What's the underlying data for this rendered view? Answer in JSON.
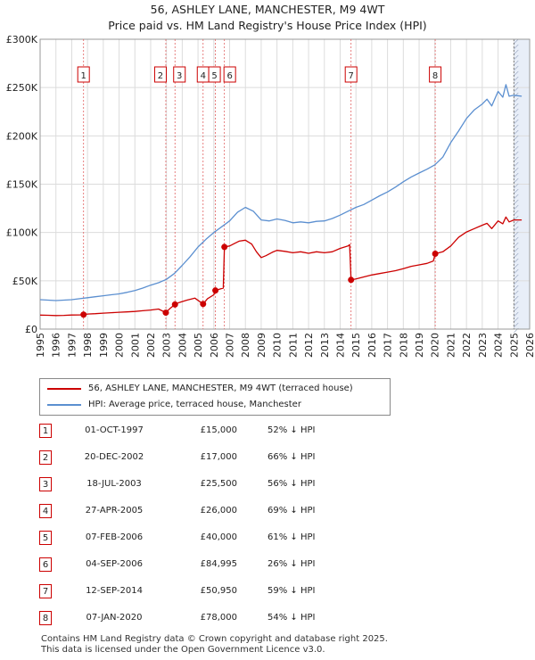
{
  "title_line1": "56, ASHLEY LANE, MANCHESTER, M9 4WT",
  "title_line2": "Price paid vs. HM Land Registry's House Price Index (HPI)",
  "colors": {
    "price": "#cc0000",
    "hpi": "#5b8fd0",
    "grid": "#dcdcdc",
    "marker_border": "#cc0000",
    "shade": "#e8eef8"
  },
  "chart_data": {
    "type": "line",
    "title": "Price paid vs. HM Land Registry's House Price Index (HPI)",
    "xlim": [
      1995,
      2026
    ],
    "ylim": [
      0,
      300000
    ],
    "x_ticks": [
      "1995",
      "1996",
      "1997",
      "1998",
      "1999",
      "2000",
      "2001",
      "2002",
      "2003",
      "2004",
      "2005",
      "2006",
      "2007",
      "2008",
      "2009",
      "2010",
      "2011",
      "2012",
      "2013",
      "2014",
      "2015",
      "2016",
      "2017",
      "2018",
      "2019",
      "2020",
      "2021",
      "2022",
      "2023",
      "2024",
      "2025",
      "2026"
    ],
    "y_ticks": [
      {
        "value": 0,
        "label": "£0"
      },
      {
        "value": 50000,
        "label": "£50K"
      },
      {
        "value": 100000,
        "label": "£100K"
      },
      {
        "value": 150000,
        "label": "£150K"
      },
      {
        "value": 200000,
        "label": "£200K"
      },
      {
        "value": 250000,
        "label": "£250K"
      },
      {
        "value": 300000,
        "label": "£300K"
      }
    ],
    "forecast_from": 2025.0,
    "series": [
      {
        "name": "56, ASHLEY LANE, MANCHESTER, M9 4WT (terraced house)",
        "color": "#cc0000",
        "points": [
          [
            1995.0,
            14500
          ],
          [
            1995.5,
            14300
          ],
          [
            1996.0,
            14000
          ],
          [
            1996.5,
            14200
          ],
          [
            1997.0,
            14600
          ],
          [
            1997.5,
            14700
          ],
          [
            1997.75,
            15000
          ],
          [
            1998.0,
            15600
          ],
          [
            1998.5,
            16000
          ],
          [
            1999.0,
            16500
          ],
          [
            1999.5,
            17000
          ],
          [
            2000.0,
            17400
          ],
          [
            2000.5,
            17800
          ],
          [
            2001.0,
            18300
          ],
          [
            2001.5,
            19000
          ],
          [
            2002.0,
            19800
          ],
          [
            2002.5,
            20800
          ],
          [
            2002.96,
            17000
          ],
          [
            2003.2,
            21000
          ],
          [
            2003.54,
            25500
          ],
          [
            2003.8,
            27500
          ],
          [
            2004.3,
            30000
          ],
          [
            2004.8,
            32000
          ],
          [
            2005.32,
            26000
          ],
          [
            2005.6,
            31500
          ],
          [
            2006.0,
            35500
          ],
          [
            2006.1,
            40000
          ],
          [
            2006.4,
            41500
          ],
          [
            2006.6,
            42500
          ],
          [
            2006.67,
            84995
          ],
          [
            2007.0,
            86000
          ],
          [
            2007.3,
            88500
          ],
          [
            2007.6,
            91000
          ],
          [
            2008.0,
            92000
          ],
          [
            2008.4,
            88000
          ],
          [
            2008.7,
            80000
          ],
          [
            2009.0,
            74000
          ],
          [
            2009.3,
            76000
          ],
          [
            2009.7,
            79500
          ],
          [
            2010.0,
            81500
          ],
          [
            2010.5,
            80500
          ],
          [
            2011.0,
            79000
          ],
          [
            2011.5,
            80000
          ],
          [
            2012.0,
            78500
          ],
          [
            2012.5,
            80000
          ],
          [
            2013.0,
            79000
          ],
          [
            2013.5,
            80000
          ],
          [
            2014.0,
            83500
          ],
          [
            2014.5,
            86000
          ],
          [
            2014.6,
            87500
          ],
          [
            2014.69,
            50950
          ],
          [
            2015.0,
            52000
          ],
          [
            2015.5,
            54000
          ],
          [
            2016.0,
            56000
          ],
          [
            2016.5,
            57500
          ],
          [
            2017.0,
            59000
          ],
          [
            2017.5,
            60500
          ],
          [
            2018.0,
            62500
          ],
          [
            2018.5,
            65000
          ],
          [
            2019.0,
            66500
          ],
          [
            2019.5,
            68000
          ],
          [
            2019.9,
            70500
          ],
          [
            2020.02,
            78000
          ],
          [
            2020.5,
            80000
          ],
          [
            2021.0,
            86000
          ],
          [
            2021.5,
            95000
          ],
          [
            2022.0,
            100500
          ],
          [
            2022.5,
            104000
          ],
          [
            2023.0,
            107500
          ],
          [
            2023.3,
            109500
          ],
          [
            2023.6,
            104000
          ],
          [
            2024.0,
            112000
          ],
          [
            2024.3,
            109000
          ],
          [
            2024.5,
            116000
          ],
          [
            2024.7,
            111000
          ],
          [
            2025.0,
            113000
          ],
          [
            2025.5,
            113000
          ]
        ]
      },
      {
        "name": "HPI: Average price, terraced house, Manchester",
        "color": "#5b8fd0",
        "points": [
          [
            1995.0,
            30500
          ],
          [
            1995.5,
            30000
          ],
          [
            1996.0,
            29500
          ],
          [
            1996.5,
            30000
          ],
          [
            1997.0,
            30500
          ],
          [
            1997.5,
            31500
          ],
          [
            1998.0,
            32500
          ],
          [
            1998.5,
            33500
          ],
          [
            1999.0,
            34500
          ],
          [
            1999.5,
            35500
          ],
          [
            2000.0,
            36500
          ],
          [
            2000.5,
            38000
          ],
          [
            2001.0,
            40000
          ],
          [
            2001.5,
            42500
          ],
          [
            2002.0,
            45500
          ],
          [
            2002.5,
            48000
          ],
          [
            2003.0,
            51500
          ],
          [
            2003.5,
            57500
          ],
          [
            2004.0,
            66000
          ],
          [
            2004.5,
            75000
          ],
          [
            2005.0,
            85000
          ],
          [
            2005.5,
            93000
          ],
          [
            2006.0,
            100000
          ],
          [
            2006.5,
            106000
          ],
          [
            2007.0,
            112000
          ],
          [
            2007.5,
            121000
          ],
          [
            2008.0,
            126000
          ],
          [
            2008.5,
            122000
          ],
          [
            2009.0,
            113000
          ],
          [
            2009.5,
            112000
          ],
          [
            2010.0,
            114000
          ],
          [
            2010.5,
            112500
          ],
          [
            2011.0,
            110000
          ],
          [
            2011.5,
            111000
          ],
          [
            2012.0,
            110000
          ],
          [
            2012.5,
            111500
          ],
          [
            2013.0,
            112000
          ],
          [
            2013.5,
            114500
          ],
          [
            2014.0,
            118000
          ],
          [
            2014.5,
            122000
          ],
          [
            2015.0,
            126000
          ],
          [
            2015.5,
            129000
          ],
          [
            2016.0,
            133500
          ],
          [
            2016.5,
            138000
          ],
          [
            2017.0,
            142000
          ],
          [
            2017.5,
            147000
          ],
          [
            2018.0,
            152500
          ],
          [
            2018.5,
            157500
          ],
          [
            2019.0,
            161500
          ],
          [
            2019.5,
            165500
          ],
          [
            2020.0,
            170000
          ],
          [
            2020.5,
            178000
          ],
          [
            2021.0,
            193000
          ],
          [
            2021.5,
            205000
          ],
          [
            2022.0,
            218000
          ],
          [
            2022.5,
            227000
          ],
          [
            2023.0,
            233000
          ],
          [
            2023.3,
            238000
          ],
          [
            2023.6,
            231000
          ],
          [
            2024.0,
            246000
          ],
          [
            2024.3,
            240000
          ],
          [
            2024.5,
            253000
          ],
          [
            2024.7,
            241000
          ],
          [
            2025.0,
            242000
          ],
          [
            2025.5,
            241000
          ]
        ]
      }
    ],
    "sales": [
      {
        "id": "1",
        "x": 1997.75,
        "price": 15000
      },
      {
        "id": "2",
        "x": 2002.96,
        "price": 17000
      },
      {
        "id": "3",
        "x": 2003.54,
        "price": 25500
      },
      {
        "id": "4",
        "x": 2005.32,
        "price": 26000
      },
      {
        "id": "5",
        "x": 2006.1,
        "price": 40000
      },
      {
        "id": "6",
        "x": 2006.67,
        "price": 84995
      },
      {
        "id": "7",
        "x": 2014.69,
        "price": 50950
      },
      {
        "id": "8",
        "x": 2020.02,
        "price": 78000
      }
    ]
  },
  "legend": {
    "price_label": "56, ASHLEY LANE, MANCHESTER, M9 4WT (terraced house)",
    "hpi_label": "HPI: Average price, terraced house, Manchester"
  },
  "transactions": [
    {
      "id": "1",
      "date": "01-OCT-1997",
      "price": "£15,000",
      "hpi": "52% ↓ HPI"
    },
    {
      "id": "2",
      "date": "20-DEC-2002",
      "price": "£17,000",
      "hpi": "66% ↓ HPI"
    },
    {
      "id": "3",
      "date": "18-JUL-2003",
      "price": "£25,500",
      "hpi": "56% ↓ HPI"
    },
    {
      "id": "4",
      "date": "27-APR-2005",
      "price": "£26,000",
      "hpi": "69% ↓ HPI"
    },
    {
      "id": "5",
      "date": "07-FEB-2006",
      "price": "£40,000",
      "hpi": "61% ↓ HPI"
    },
    {
      "id": "6",
      "date": "04-SEP-2006",
      "price": "£84,995",
      "hpi": "26% ↓ HPI"
    },
    {
      "id": "7",
      "date": "12-SEP-2014",
      "price": "£50,950",
      "hpi": "59% ↓ HPI"
    },
    {
      "id": "8",
      "date": "07-JAN-2020",
      "price": "£78,000",
      "hpi": "54% ↓ HPI"
    }
  ],
  "footer": {
    "line1": "Contains HM Land Registry data © Crown copyright and database right 2025.",
    "line2": "This data is licensed under the Open Government Licence v3.0."
  }
}
